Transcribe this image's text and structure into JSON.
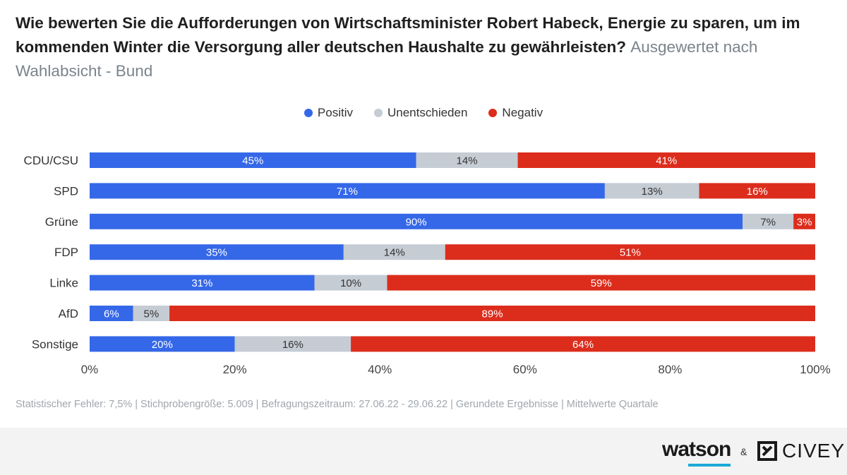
{
  "title": {
    "main": "Wie bewerten Sie die Aufforderungen von Wirtschaftsminister Robert Habeck, Energie zu sparen, um im kommenden Winter die Versorgung aller deutschen Haushalte zu gewährleisten?",
    "sub": "Ausgewertet nach Wahlabsicht - Bund"
  },
  "legend": [
    {
      "label": "Positiv",
      "color": "#3568e8"
    },
    {
      "label": "Unentschieden",
      "color": "#c5ccd4"
    },
    {
      "label": "Negativ",
      "color": "#dc2d1c"
    }
  ],
  "chart_data": {
    "type": "bar",
    "orientation": "horizontal",
    "stacked": true,
    "categories": [
      "CDU/CSU",
      "SPD",
      "Grüne",
      "FDP",
      "Linke",
      "AfD",
      "Sonstige"
    ],
    "series": [
      {
        "name": "Positiv",
        "color": "#3568e8",
        "values": [
          45,
          71,
          90,
          35,
          31,
          6,
          20
        ]
      },
      {
        "name": "Unentschieden",
        "color": "#c5ccd4",
        "values": [
          14,
          13,
          7,
          14,
          10,
          5,
          16
        ]
      },
      {
        "name": "Negativ",
        "color": "#dc2d1c",
        "values": [
          41,
          16,
          3,
          51,
          59,
          89,
          64
        ]
      }
    ],
    "xlim": [
      0,
      100
    ],
    "xticks": [
      "0%",
      "20%",
      "40%",
      "60%",
      "80%",
      "100%"
    ],
    "legend_position": "top-center"
  },
  "footnote": "Statistischer Fehler: 7,5% | Stichprobengröße: 5.009 | Befragungszeitraum: 27.06.22 - 29.06.22 | Gerundete Ergebnisse | Mittelwerte Quartale",
  "brand": {
    "watson": "watson",
    "amp": "&",
    "civey": "CIVEY"
  }
}
